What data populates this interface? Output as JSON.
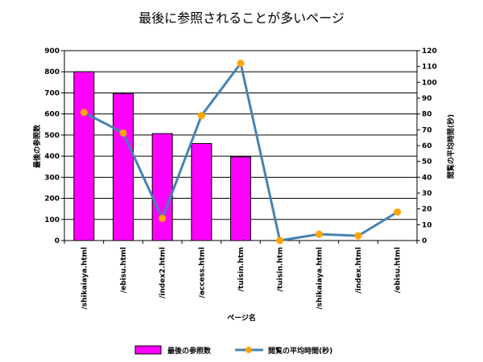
{
  "chart_data": {
    "type": "bar",
    "title": "最後に参照されることが多いページ",
    "xlabel": "ページ名",
    "ylabel_left": "最後の参照数",
    "ylabel_right": "閲覧の平均時間(秒)",
    "categories": [
      "/shikaiaya.html",
      "/ebisu.html",
      "/index2.html",
      "/access.html",
      "/tuisin.htm",
      "/tuisin.htm",
      "/shikaiaya.html",
      "/index.html",
      "/ebisu.html"
    ],
    "series": [
      {
        "name": "最後の参照数",
        "type": "bar",
        "axis": "left",
        "values": [
          800,
          697,
          507,
          460,
          397,
          0,
          0,
          0,
          0
        ]
      },
      {
        "name": "閲覧の平均時間(秒)",
        "type": "line",
        "axis": "right",
        "values": [
          81,
          68,
          14,
          79,
          112,
          0,
          4,
          3,
          18
        ]
      }
    ],
    "ylim_left": [
      0,
      900
    ],
    "yticks_left": [
      0,
      100,
      200,
      300,
      400,
      500,
      600,
      700,
      800,
      900
    ],
    "ylim_right": [
      0,
      120
    ],
    "yticks_right": [
      0,
      10,
      20,
      30,
      40,
      50,
      60,
      70,
      80,
      90,
      100,
      110,
      120
    ],
    "grid": true,
    "legend_position": "bottom",
    "colors": {
      "bar": "#ff00ff",
      "bar_stroke": "#000000",
      "line": "#4682b4",
      "marker": "#ffa500"
    }
  }
}
